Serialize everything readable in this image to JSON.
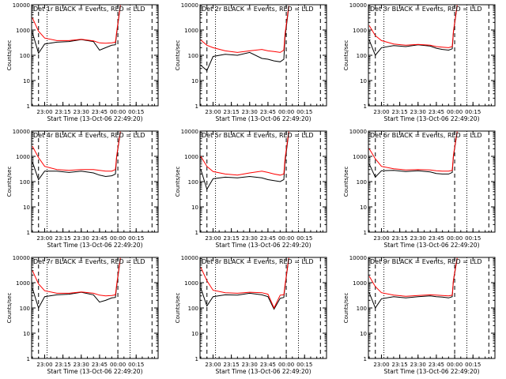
{
  "chart_data": [
    {
      "type": "line",
      "title": "Det 1r BLACK = Events, RED = LLD",
      "xlabel": "Start Time (13-Oct-06 22:49:20)",
      "ylabel": "Counts/sec",
      "xlim": [
        "22:49:20",
        "00:33:00"
      ],
      "ylim": [
        1,
        10000
      ],
      "yscale": "log",
      "xticks": [
        "23:00",
        "23:15",
        "23:30",
        "23:45",
        "00:00",
        "00:15"
      ],
      "yticks": [
        "1",
        "10",
        "100",
        "1000",
        "10000"
      ],
      "x": [
        "22:50",
        "22:55",
        "23:00",
        "23:10",
        "23:20",
        "23:30",
        "23:40",
        "23:45",
        "23:50",
        "23:55",
        "23:58",
        "23:59",
        "00:02"
      ],
      "series": [
        {
          "color": "#000000",
          "values": [
            800,
            120,
            280,
            330,
            350,
            420,
            350,
            160,
            200,
            250,
            260,
            700,
            9000
          ]
        },
        {
          "color": "#ff0000",
          "values": [
            3000,
            900,
            480,
            380,
            380,
            430,
            370,
            310,
            300,
            310,
            330,
            800,
            9500
          ]
        }
      ]
    },
    {
      "type": "line",
      "title": "Det 2r BLACK = Events, RED = LLD",
      "xlabel": "Start Time (13-Oct-06 22:49:20)",
      "ylabel": "Counts/sec",
      "xlim": [
        "22:49:20",
        "00:33:00"
      ],
      "ylim": [
        1,
        10000
      ],
      "yscale": "log",
      "xticks": [
        "23:00",
        "23:15",
        "23:30",
        "23:45",
        "00:00",
        "00:15"
      ],
      "yticks": [
        "1",
        "10",
        "100",
        "1000",
        "10000"
      ],
      "x": [
        "22:50",
        "22:55",
        "23:00",
        "23:10",
        "23:20",
        "23:30",
        "23:40",
        "23:45",
        "23:50",
        "23:55",
        "23:58",
        "23:59",
        "00:02"
      ],
      "series": [
        {
          "color": "#000000",
          "values": [
            40,
            25,
            90,
            110,
            100,
            130,
            75,
            70,
            60,
            55,
            70,
            500,
            8000
          ]
        },
        {
          "color": "#ff0000",
          "values": [
            400,
            250,
            200,
            150,
            130,
            150,
            170,
            150,
            140,
            130,
            160,
            700,
            9000
          ]
        }
      ]
    },
    {
      "type": "line",
      "title": "Det 3r BLACK = Events, RED = LLD",
      "xlabel": "Start Time (13-Oct-06 22:49:20)",
      "ylabel": "Counts/sec",
      "xlim": [
        "22:49:20",
        "00:33:00"
      ],
      "ylim": [
        1,
        10000
      ],
      "yscale": "log",
      "xticks": [
        "23:00",
        "23:15",
        "23:30",
        "23:45",
        "00:00",
        "00:15"
      ],
      "yticks": [
        "1",
        "10",
        "100",
        "1000",
        "10000"
      ],
      "x": [
        "22:50",
        "22:55",
        "23:00",
        "23:10",
        "23:20",
        "23:30",
        "23:40",
        "23:45",
        "23:50",
        "23:55",
        "23:58",
        "23:59",
        "00:02"
      ],
      "series": [
        {
          "color": "#000000",
          "values": [
            400,
            100,
            200,
            240,
            220,
            260,
            230,
            190,
            170,
            160,
            180,
            800,
            9000
          ]
        },
        {
          "color": "#ff0000",
          "values": [
            1500,
            600,
            380,
            280,
            250,
            270,
            250,
            220,
            210,
            200,
            220,
            900,
            9500
          ]
        }
      ]
    },
    {
      "type": "line",
      "title": "Det 4r BLACK = Events, RED = LLD",
      "xlabel": "Start Time (13-Oct-06 22:49:20)",
      "ylabel": "Counts/sec",
      "xlim": [
        "22:49:20",
        "00:33:00"
      ],
      "ylim": [
        1,
        10000
      ],
      "yscale": "log",
      "xticks": [
        "23:00",
        "23:15",
        "23:30",
        "23:45",
        "00:00",
        "00:15"
      ],
      "yticks": [
        "1",
        "10",
        "100",
        "1000",
        "10000"
      ],
      "x": [
        "22:50",
        "22:55",
        "23:00",
        "23:10",
        "23:20",
        "23:30",
        "23:40",
        "23:45",
        "23:50",
        "23:55",
        "23:58",
        "23:59",
        "00:02"
      ],
      "series": [
        {
          "color": "#000000",
          "values": [
            600,
            120,
            260,
            260,
            230,
            260,
            220,
            180,
            160,
            170,
            200,
            900,
            9000
          ]
        },
        {
          "color": "#ff0000",
          "values": [
            2500,
            900,
            400,
            300,
            280,
            300,
            300,
            280,
            260,
            260,
            300,
            1000,
            9500
          ]
        }
      ]
    },
    {
      "type": "line",
      "title": "Det 5r BLACK = Events, RED = LLD",
      "xlabel": "Start Time (13-Oct-06 22:49:20)",
      "ylabel": "Counts/sec",
      "xlim": [
        "22:49:20",
        "00:33:00"
      ],
      "ylim": [
        1,
        10000
      ],
      "yscale": "log",
      "xticks": [
        "23:00",
        "23:15",
        "23:30",
        "23:45",
        "00:00",
        "00:15"
      ],
      "yticks": [
        "1",
        "10",
        "100",
        "1000",
        "10000"
      ],
      "x": [
        "22:50",
        "22:55",
        "23:00",
        "23:10",
        "23:20",
        "23:30",
        "23:40",
        "23:45",
        "23:50",
        "23:55",
        "23:58",
        "23:59",
        "00:02"
      ],
      "series": [
        {
          "color": "#000000",
          "values": [
            300,
            50,
            130,
            150,
            140,
            160,
            140,
            120,
            110,
            100,
            120,
            600,
            8500
          ]
        },
        {
          "color": "#ff0000",
          "values": [
            1000,
            400,
            250,
            200,
            180,
            220,
            260,
            230,
            200,
            180,
            200,
            800,
            9500
          ]
        }
      ]
    },
    {
      "type": "line",
      "title": "Det 6r BLACK = Events, RED = LLD",
      "xlabel": "Start Time (13-Oct-06 22:49:20)",
      "ylabel": "Counts/sec",
      "xlim": [
        "22:49:20",
        "00:33:00"
      ],
      "ylim": [
        1,
        10000
      ],
      "yscale": "log",
      "xticks": [
        "23:00",
        "23:15",
        "23:30",
        "23:45",
        "00:00",
        "00:15"
      ],
      "yticks": [
        "1",
        "10",
        "100",
        "1000",
        "10000"
      ],
      "x": [
        "22:50",
        "22:55",
        "23:00",
        "23:10",
        "23:20",
        "23:30",
        "23:40",
        "23:45",
        "23:50",
        "23:55",
        "23:58",
        "23:59",
        "00:02"
      ],
      "series": [
        {
          "color": "#000000",
          "values": [
            500,
            150,
            270,
            280,
            250,
            270,
            240,
            210,
            200,
            200,
            230,
            1000,
            9000
          ]
        },
        {
          "color": "#ff0000",
          "values": [
            2000,
            800,
            400,
            320,
            290,
            300,
            290,
            270,
            260,
            260,
            280,
            1100,
            9500
          ]
        }
      ]
    },
    {
      "type": "line",
      "title": "Det 7r BLACK = Events, RED = LLD",
      "xlabel": "Start Time (13-Oct-06 22:49:20)",
      "ylabel": "Counts/sec",
      "xlim": [
        "22:49:20",
        "00:33:00"
      ],
      "ylim": [
        1,
        10000
      ],
      "yscale": "log",
      "xticks": [
        "23:00",
        "23:15",
        "23:30",
        "23:45",
        "00:00",
        "00:15"
      ],
      "yticks": [
        "1",
        "10",
        "100",
        "1000",
        "10000"
      ],
      "x": [
        "22:50",
        "22:55",
        "23:00",
        "23:10",
        "23:20",
        "23:30",
        "23:40",
        "23:45",
        "23:50",
        "23:55",
        "23:58",
        "23:59",
        "00:02"
      ],
      "series": [
        {
          "color": "#000000",
          "values": [
            600,
            100,
            280,
            330,
            350,
            420,
            330,
            170,
            200,
            250,
            260,
            700,
            9000
          ]
        },
        {
          "color": "#ff0000",
          "values": [
            3000,
            900,
            480,
            380,
            380,
            430,
            380,
            320,
            300,
            310,
            330,
            800,
            9500
          ]
        }
      ]
    },
    {
      "type": "line",
      "title": "Det 8r BLACK = Events, RED = LLD",
      "xlabel": "Start Time (13-Oct-06 22:49:20)",
      "ylabel": "Counts/sec",
      "xlim": [
        "22:49:20",
        "00:33:00"
      ],
      "ylim": [
        1,
        10000
      ],
      "yscale": "log",
      "xticks": [
        "23:00",
        "23:15",
        "23:30",
        "23:45",
        "00:00",
        "00:15"
      ],
      "yticks": [
        "1",
        "10",
        "100",
        "1000",
        "10000"
      ],
      "x": [
        "22:50",
        "22:55",
        "23:00",
        "23:10",
        "23:20",
        "23:30",
        "23:40",
        "23:45",
        "23:50",
        "23:55",
        "23:58",
        "23:59",
        "00:02"
      ],
      "series": [
        {
          "color": "#000000",
          "values": [
            600,
            120,
            280,
            330,
            320,
            380,
            330,
            280,
            90,
            240,
            260,
            700,
            9000
          ]
        },
        {
          "color": "#ff0000",
          "values": [
            4000,
            1200,
            500,
            400,
            380,
            420,
            400,
            350,
            100,
            320,
            330,
            800,
            9500
          ]
        }
      ]
    },
    {
      "type": "line",
      "title": "Det 9r BLACK = Events, RED = LLD",
      "xlabel": "Start Time (13-Oct-06 22:49:20)",
      "ylabel": "Counts/sec",
      "xlim": [
        "22:49:20",
        "00:33:00"
      ],
      "ylim": [
        1,
        10000
      ],
      "yscale": "log",
      "xticks": [
        "23:00",
        "23:15",
        "23:30",
        "23:45",
        "00:00",
        "00:15"
      ],
      "yticks": [
        "1",
        "10",
        "100",
        "1000",
        "10000"
      ],
      "x": [
        "22:50",
        "22:55",
        "23:00",
        "23:10",
        "23:20",
        "23:30",
        "23:40",
        "23:45",
        "23:50",
        "23:55",
        "23:58",
        "23:59",
        "00:02"
      ],
      "series": [
        {
          "color": "#000000",
          "values": [
            400,
            100,
            230,
            280,
            250,
            280,
            300,
            280,
            270,
            250,
            280,
            1200,
            9000
          ]
        },
        {
          "color": "#ff0000",
          "values": [
            1800,
            700,
            400,
            320,
            290,
            310,
            330,
            320,
            310,
            300,
            320,
            1300,
            9500
          ]
        }
      ]
    }
  ]
}
